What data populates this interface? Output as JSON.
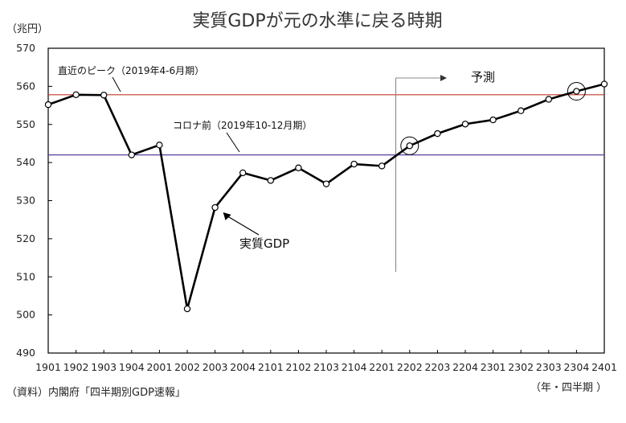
{
  "chart_data": {
    "type": "line",
    "title": "実質GDPが元の水準に戻る時期",
    "ylabel": "（兆円）",
    "xlabel": "（年・四半期 ）",
    "source": "（資料）内閣府「四半期別GDP速報」",
    "ylim": [
      490,
      570
    ],
    "yticks": [
      490,
      500,
      510,
      520,
      530,
      540,
      550,
      560,
      570
    ],
    "categories": [
      "1901",
      "1902",
      "1903",
      "1904",
      "2001",
      "2002",
      "2003",
      "2004",
      "2101",
      "2102",
      "2103",
      "2104",
      "2201",
      "2202",
      "2203",
      "2204",
      "2301",
      "2302",
      "2303",
      "2304",
      "2401"
    ],
    "series": [
      {
        "name": "実質GDP",
        "values": [
          555.2,
          557.8,
          557.7,
          542.0,
          544.6,
          501.6,
          528.2,
          537.3,
          535.3,
          538.6,
          534.4,
          539.6,
          539.1,
          544.4,
          547.6,
          550.1,
          551.2,
          553.6,
          556.6,
          558.7,
          560.6
        ]
      }
    ],
    "reference_lines": [
      {
        "label": "直近のピーク（2019年4-6月期）",
        "value": 557.8,
        "color": "#c0392b"
      },
      {
        "label": "コロナ前（2019年10-12月期）",
        "value": 542.0,
        "color": "#5b3fa0"
      }
    ],
    "forecast": {
      "label": "予測",
      "start_category": "2202"
    },
    "highlighted_points": [
      "2202",
      "2304"
    ],
    "grid": false,
    "legend": "none"
  }
}
